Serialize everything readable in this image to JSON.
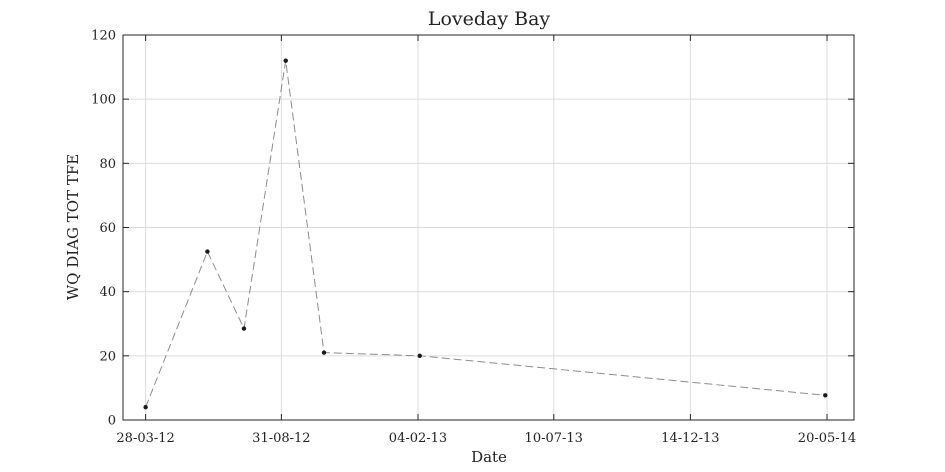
{
  "chart_data": {
    "type": "line",
    "title": "Loveday Bay",
    "xlabel": "Date",
    "ylabel": "WQ DIAG TOT TFE",
    "x_tick_labels": [
      "28-03-12",
      "31-08-12",
      "04-02-13",
      "10-07-13",
      "14-12-13",
      "20-05-14"
    ],
    "x_ticks": [
      "2012-03-28",
      "2012-08-31",
      "2013-02-04",
      "2013-07-10",
      "2013-12-14",
      "2014-05-20"
    ],
    "xlim": [
      "2012-03-02",
      "2014-06-20"
    ],
    "y_tick_labels": [
      "0",
      "20",
      "40",
      "60",
      "80",
      "100",
      "120"
    ],
    "y_ticks": [
      0,
      20,
      40,
      60,
      80,
      100,
      120
    ],
    "ylim": [
      0,
      120
    ],
    "grid": true,
    "series": [
      {
        "x": [
          "2012-03-28",
          "2012-06-07",
          "2012-07-19",
          "2012-09-05",
          "2012-10-19",
          "2013-02-06",
          "2014-05-18"
        ],
        "values": [
          4,
          52.5,
          28.5,
          112,
          21,
          20,
          7.7
        ],
        "color": "#8c8c8c",
        "line_style": "dashed",
        "marker_color": "#1a1a1a"
      }
    ]
  }
}
